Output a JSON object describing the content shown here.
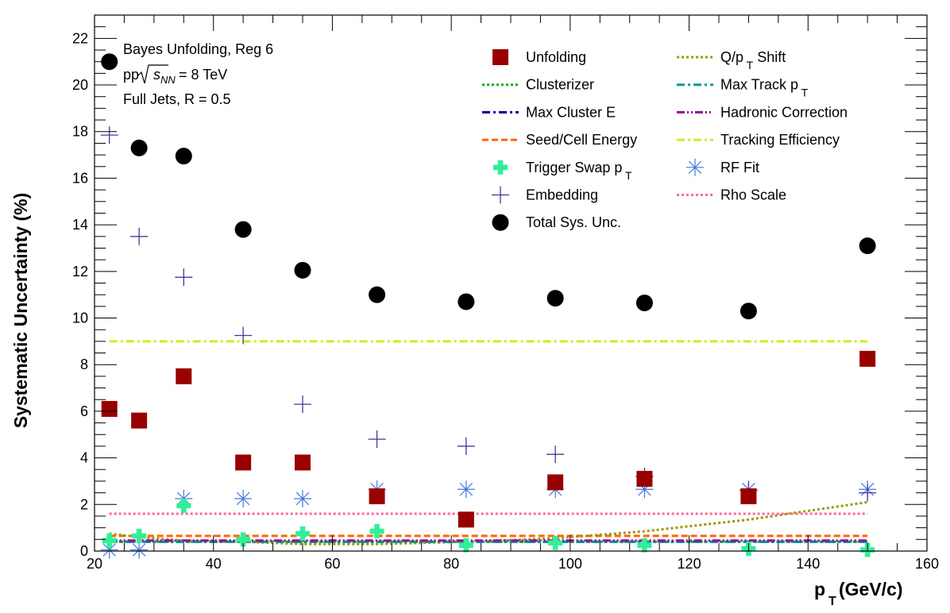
{
  "chart_data": {
    "type": "scatter",
    "title": "",
    "xlabel": {
      "main": "p",
      "sub": "T",
      "rest": " (GeV/c)"
    },
    "ylabel": "Systematic Uncertainty (%)",
    "xlim": [
      20,
      160
    ],
    "ylim": [
      0,
      23
    ],
    "xticks": [
      20,
      40,
      60,
      80,
      100,
      120,
      140,
      160
    ],
    "yticks": [
      0,
      2,
      4,
      6,
      8,
      10,
      12,
      14,
      16,
      18,
      20,
      22
    ],
    "grid": false,
    "annotations": {
      "line1": "Bayes Unfolding, Reg 6",
      "line2_pre": "pp ",
      "line2_sym": "s",
      "line2_sub": "NN",
      "line2_post": " = 8 TeV",
      "line3": "Full Jets, R = 0.5"
    },
    "x": [
      22.5,
      27.5,
      35,
      45,
      55,
      67.5,
      82.5,
      97.5,
      112.5,
      130,
      150
    ],
    "series": [
      {
        "key": "unfolding",
        "name": "Unfolding",
        "marker": "square",
        "color": "#990000",
        "values": [
          6.1,
          5.6,
          7.5,
          3.8,
          3.8,
          2.35,
          1.35,
          2.95,
          3.1,
          2.35,
          8.25
        ]
      },
      {
        "key": "embedding",
        "name": "Embedding",
        "marker": "plus",
        "color": "#4b3399",
        "values": [
          17.85,
          13.5,
          11.75,
          9.25,
          6.3,
          4.8,
          4.5,
          4.15,
          3.2,
          2.6,
          2.5
        ]
      },
      {
        "key": "trigger_swap",
        "name": "Trigger Swap p",
        "name_sub": "T",
        "marker": "cross",
        "color": "#33ee99",
        "values": [
          0.45,
          0.65,
          1.95,
          0.5,
          0.75,
          0.85,
          0.25,
          0.35,
          0.25,
          0.1,
          0.05
        ]
      },
      {
        "key": "rf_fit",
        "name": "RF Fit",
        "marker": "asterisk",
        "color": "#4477dd",
        "values": [
          0.05,
          0.05,
          2.25,
          2.25,
          2.25,
          2.65,
          2.65,
          2.65,
          2.65,
          2.65,
          2.65
        ]
      },
      {
        "key": "total",
        "name": "Total Sys. Unc.",
        "marker": "circle",
        "color": "#000000",
        "values": [
          21.0,
          17.3,
          16.95,
          13.8,
          12.05,
          11.0,
          10.7,
          10.85,
          10.65,
          10.3,
          13.1
        ]
      },
      {
        "key": "clusterizer",
        "name": "Clusterizer",
        "line": "dotted",
        "color": "#11aa22",
        "values": [
          0.4,
          0.4,
          0.4,
          0.4,
          0.4,
          0.4,
          0.4,
          0.4,
          0.4,
          0.4,
          0.4
        ]
      },
      {
        "key": "max_cluster_e",
        "name": "Max Cluster E",
        "line": "dashdot",
        "color": "#000099",
        "values": [
          0.4,
          0.4,
          0.4,
          0.4,
          0.4,
          0.4,
          0.4,
          0.4,
          0.4,
          0.4,
          0.4
        ]
      },
      {
        "key": "seed_cell",
        "name": "Seed/Cell Energy",
        "line": "dashed",
        "color": "#ff6600",
        "values": [
          0.65,
          0.65,
          0.65,
          0.65,
          0.65,
          0.65,
          0.65,
          0.65,
          0.65,
          0.65,
          0.65
        ]
      },
      {
        "key": "qpt_shift",
        "name": "Q/p",
        "name_sub": "T",
        "name_post": " Shift",
        "line": "dotted",
        "color": "#999900",
        "values": [
          0.75,
          0.6,
          0.45,
          0.4,
          0.3,
          0.3,
          0.4,
          0.55,
          0.85,
          1.35,
          2.1
        ]
      },
      {
        "key": "max_track",
        "name": "Max Track p",
        "name_sub": "T",
        "line": "dashdot",
        "color": "#009999",
        "values": [
          0.4,
          0.4,
          0.4,
          0.4,
          0.4,
          0.4,
          0.4,
          0.4,
          0.4,
          0.4,
          0.4
        ]
      },
      {
        "key": "hadronic",
        "name": "Hadronic Correction",
        "line": "dashdotdot",
        "color": "#990099",
        "values": [
          0.45,
          0.45,
          0.45,
          0.45,
          0.45,
          0.45,
          0.45,
          0.45,
          0.45,
          0.45,
          0.45
        ]
      },
      {
        "key": "tracking",
        "name": "Tracking Efficiency",
        "line": "dashdot",
        "color": "#ccee22",
        "values": [
          9.0,
          9.0,
          9.0,
          9.0,
          9.0,
          9.0,
          9.0,
          9.0,
          9.0,
          9.0,
          9.0
        ]
      },
      {
        "key": "rho_scale",
        "name": "Rho Scale",
        "line": "dotted",
        "color": "#ff6699",
        "values": [
          1.6,
          1.6,
          1.6,
          1.6,
          1.6,
          1.6,
          1.6,
          1.6,
          1.6,
          1.6,
          1.6
        ]
      }
    ],
    "legend": {
      "placement": "top-right",
      "columns": [
        [
          "unfolding",
          "clusterizer",
          "max_cluster_e",
          "seed_cell",
          "trigger_swap",
          "embedding",
          "total"
        ],
        [
          "qpt_shift",
          "max_track",
          "hadronic",
          "tracking",
          "rf_fit",
          "rho_scale"
        ]
      ]
    }
  }
}
